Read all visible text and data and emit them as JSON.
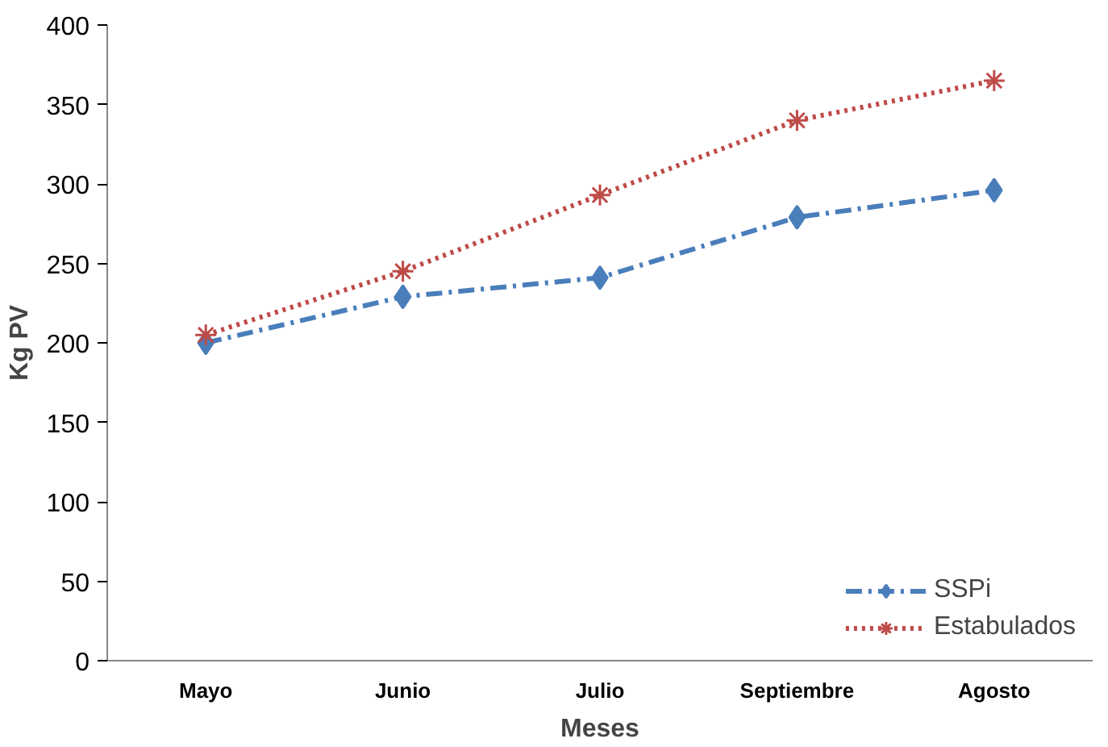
{
  "chart_data": {
    "type": "line",
    "xlabel": "Meses",
    "ylabel": "Kg PV",
    "categories": [
      "Mayo",
      "Junio",
      "Julio",
      "Septiembre",
      "Agosto"
    ],
    "ylim": [
      0,
      400
    ],
    "yticks": [
      0,
      50,
      100,
      150,
      200,
      250,
      300,
      350,
      400
    ],
    "grid": false,
    "legend": "bottom right",
    "series": [
      {
        "name": "SSPi",
        "color": "#4a7ebb",
        "values": [
          200,
          229,
          241,
          279,
          296
        ],
        "marker": "diamond",
        "line_style": "dashed"
      },
      {
        "name": "Estabulados",
        "color": "#be4b48",
        "values": [
          205,
          245,
          293,
          340,
          365
        ],
        "marker": "cross",
        "line_style": "dotted"
      }
    ]
  }
}
